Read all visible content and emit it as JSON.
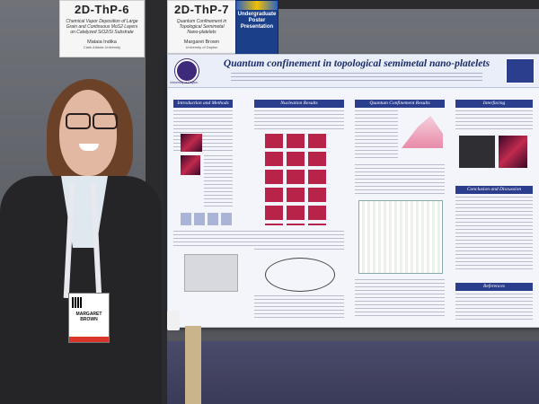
{
  "sign_left": {
    "code": "2D-ThP-6",
    "title": "Chemical Vapor Deposition of Large Grain and Continuous MoS2 Layers on Catalyzed SiO2/Si Substrate",
    "author": "Mataia Indika",
    "affiliation": "Clark Atlanta University"
  },
  "sign_right": {
    "code": "2D-ThP-7",
    "title": "Quantum Confinement in Topological Semimetal Nano-platelets",
    "author": "Margaret Brown",
    "affiliation": "University of Dayton"
  },
  "award_sign": {
    "line1": "Undergraduate",
    "line2": "Poster Presentation"
  },
  "poster": {
    "title": "Quantum confinement in topological semimetal nano-platelets",
    "logo_text": "University of Dayton",
    "sections": {
      "intro": "Introduction and Methods",
      "nucleation": "Nucleation Results",
      "quantum": "Quantum Confinement Results",
      "interfacing": "Interfacing",
      "conclusion": "Conclusion and Discussion",
      "references": "References"
    }
  },
  "badge": {
    "line1": "MARGARET",
    "line2": "BROWN"
  },
  "colors": {
    "poster_header": "#2b3e8e",
    "poster_bg": "#f3f5fb",
    "badge_stripe": "#d8362a",
    "hair": "#6b4128"
  }
}
